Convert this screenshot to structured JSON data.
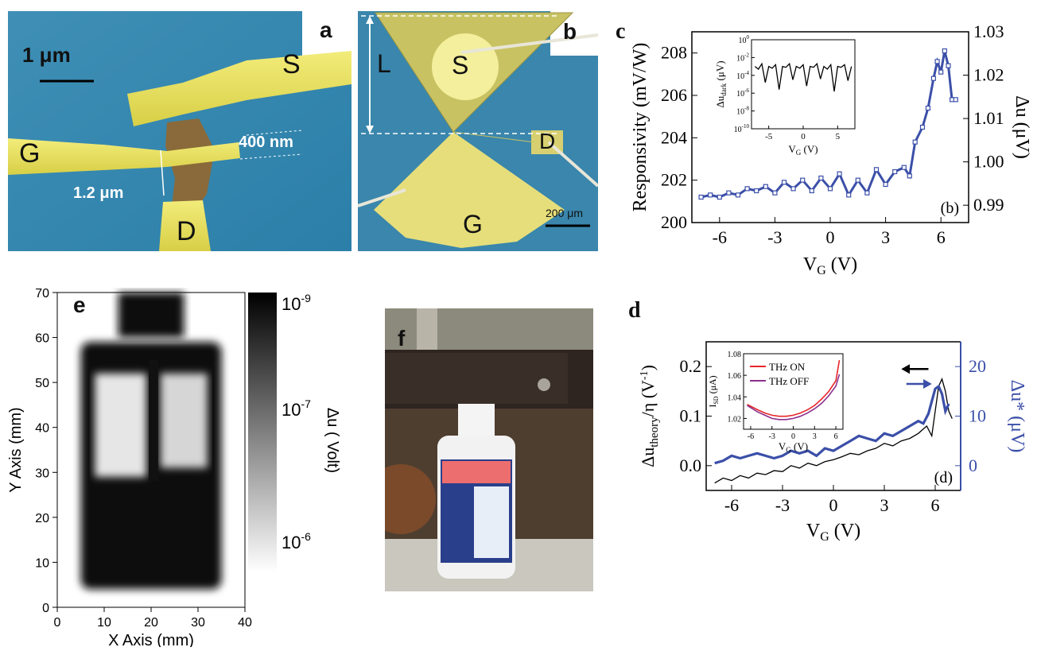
{
  "panels": {
    "a": {
      "letter": "a",
      "scalebar": "1 μm",
      "labels": {
        "s": "S",
        "g": "G",
        "d": "D"
      },
      "dim_gate": "400 nm",
      "dim_channel": "1.2 μm"
    },
    "b": {
      "letter": "b",
      "labels": {
        "s": "S",
        "g": "G",
        "d": "D",
        "l": "L"
      },
      "scalebar": "200 μm"
    },
    "c": {
      "letter": "c",
      "inset_ylabel": "Δu",
      "inset_ylabel_sub": "dark",
      "inset_ylabel_unit": " (μV)",
      "inset_xlabel": "V",
      "inset_xlabel_sub": "G",
      "inset_xlabel_unit": " (V)",
      "corner_tag": "(b)"
    },
    "d": {
      "letter": "d",
      "corner_tag": "(d)",
      "inset_legend": [
        "THz ON",
        "THz OFF"
      ]
    },
    "e": {
      "letter": "e",
      "colorbar_label": "Δu ( Volt)",
      "colorbar_ticks": [
        "10",
        "10",
        "10"
      ],
      "colorbar_exps": [
        "-9",
        "-7",
        "-6"
      ]
    },
    "f": {
      "letter": "f"
    }
  },
  "chart_data": [
    {
      "id": "c",
      "type": "line",
      "xlabel": "V",
      "xlabel_sub": "G",
      "xlabel_unit": " (V)",
      "ylabel": "Responsivity (mV/W)",
      "y2label": "Δu (μV)",
      "xlim": [
        -7.5,
        7.5
      ],
      "ylim": [
        200,
        209
      ],
      "y2lim": [
        0.986,
        1.03
      ],
      "xticks": [
        "-6",
        "-3",
        "0",
        "3",
        "6"
      ],
      "yticks": [
        "200",
        "202",
        "204",
        "206",
        "208"
      ],
      "y2ticks": [
        "0.99",
        "1.00",
        "1.01",
        "1.02",
        "1.03"
      ],
      "series": [
        {
          "color": "#3b4fa8",
          "x": [
            -7,
            -6.5,
            -6,
            -5.5,
            -5,
            -4.5,
            -4,
            -3.5,
            -3,
            -2.5,
            -2,
            -1.5,
            -1,
            -0.5,
            0,
            0.5,
            1,
            1.5,
            2,
            2.5,
            3,
            3.5,
            4,
            4.3,
            4.6,
            5,
            5.3,
            5.6,
            5.8,
            6,
            6.2,
            6.4,
            6.6,
            6.8
          ],
          "values": [
            201.2,
            201.3,
            201.2,
            201.4,
            201.3,
            201.6,
            201.5,
            201.7,
            201.4,
            201.9,
            201.6,
            202.0,
            201.5,
            202.1,
            201.6,
            202.3,
            201.3,
            202.0,
            201.4,
            202.5,
            201.8,
            202.4,
            202.6,
            202.2,
            203.8,
            204.5,
            205.4,
            206.8,
            207.6,
            207.1,
            208.1,
            207.4,
            205.8,
            205.8
          ]
        }
      ],
      "inset": {
        "type": "line",
        "xlim": [
          -7.5,
          7.5
        ],
        "ylog": true,
        "yticks_exp": [
          "0",
          "-2",
          "-4",
          "-6",
          "-8",
          "-10"
        ],
        "xticks": [
          "-5",
          "0",
          "5"
        ],
        "x": [
          -7,
          -6.5,
          -6,
          -5.5,
          -5,
          -4.5,
          -4,
          -3.5,
          -3,
          -2.5,
          -2,
          -1.5,
          -1,
          -0.5,
          0,
          0.5,
          1,
          1.5,
          2,
          2.5,
          3,
          3.5,
          4,
          4.5,
          5,
          5.5,
          6,
          6.5,
          7
        ],
        "values_log": [
          -3.0,
          -3.3,
          -2.7,
          -4.8,
          -3.0,
          -3.2,
          -2.8,
          -5.6,
          -3.0,
          -3.1,
          -2.7,
          -4.5,
          -3.0,
          -3.2,
          -2.8,
          -5.2,
          -3.0,
          -3.1,
          -2.7,
          -4.4,
          -3.0,
          -3.3,
          -2.8,
          -5.8,
          -3.0,
          -3.1,
          -2.8,
          -4.6,
          -3.0
        ]
      }
    },
    {
      "id": "d",
      "type": "line",
      "xlabel": "V",
      "xlabel_sub": "G",
      "xlabel_unit": " (V)",
      "ylabel": "Δu",
      "ylabel_sub": "theory",
      "ylabel_tail": "/η (V",
      "ylabel_sup": "-1",
      "ylabel_close": ")",
      "y2label": "Δu* (μV)",
      "xlim": [
        -7.5,
        7.5
      ],
      "ylim": [
        -0.05,
        0.25
      ],
      "y2lim": [
        -5,
        25
      ],
      "xticks": [
        "-6",
        "-3",
        "0",
        "3",
        "6"
      ],
      "yticks": [
        "0.0",
        "0.1",
        "0.2"
      ],
      "y2ticks": [
        "0",
        "10",
        "20"
      ],
      "series": [
        {
          "color": "#000000",
          "axis": "left",
          "x": [
            -7,
            -6.5,
            -6,
            -5.5,
            -5,
            -4.5,
            -4,
            -3.5,
            -3,
            -2.5,
            -2,
            -1.5,
            -1,
            -0.5,
            0,
            0.5,
            1,
            1.5,
            2,
            2.5,
            3,
            3.5,
            4,
            4.5,
            5,
            5.5,
            5.8,
            6,
            6.2,
            6.4,
            6.6,
            6.8,
            7
          ],
          "values": [
            -0.035,
            -0.025,
            -0.03,
            -0.02,
            -0.025,
            -0.015,
            -0.018,
            -0.01,
            -0.012,
            0.0,
            -0.005,
            0.005,
            0.0,
            0.008,
            0.012,
            0.018,
            0.025,
            0.022,
            0.03,
            0.035,
            0.045,
            0.04,
            0.05,
            0.055,
            0.065,
            0.08,
            0.06,
            0.11,
            0.16,
            0.175,
            0.15,
            0.11,
            0.095
          ]
        },
        {
          "color": "#3b4fa8",
          "axis": "right",
          "x": [
            -7,
            -6.5,
            -6,
            -5.5,
            -5,
            -4.5,
            -4,
            -3.5,
            -3,
            -2.5,
            -2,
            -1.5,
            -1,
            -0.5,
            0,
            0.5,
            1,
            1.5,
            2,
            2.5,
            3,
            3.5,
            4,
            4.5,
            5,
            5.3,
            5.6,
            5.8,
            6,
            6.2,
            6.4,
            6.6,
            6.8
          ],
          "values": [
            0.5,
            1.0,
            2.0,
            1.5,
            2.0,
            2.5,
            2.0,
            1.5,
            2.0,
            3.0,
            2.5,
            3.0,
            2.0,
            3.5,
            3.0,
            4.0,
            5.0,
            6.0,
            5.5,
            5.0,
            6.5,
            6.0,
            7.0,
            8.0,
            9.0,
            8.5,
            10.5,
            13.0,
            15.5,
            16.0,
            14.5,
            11.0,
            12.5
          ]
        }
      ],
      "inset": {
        "type": "line",
        "ylabel": "I",
        "ylabel_sub": "SD",
        "ylabel_unit": " (μA)",
        "xlabel": "V",
        "xlabel_sub": "G",
        "xlabel_unit": " (V)",
        "xlim": [
          -7,
          7
        ],
        "ylim": [
          1.01,
          1.08
        ],
        "yticks": [
          "1.02",
          "1.04",
          "1.06",
          "1.08"
        ],
        "xticks": [
          "-6",
          "-3",
          "0",
          "3",
          "6"
        ],
        "series": [
          {
            "name": "THz ON",
            "color": "#e8262a",
            "x": [
              -6.5,
              -5,
              -4,
              -3,
              -2,
              -1,
              0,
              1,
              2,
              3,
              4,
              5,
              6,
              6.5
            ],
            "values": [
              1.033,
              1.028,
              1.025,
              1.023,
              1.022,
              1.022,
              1.023,
              1.025,
              1.028,
              1.032,
              1.038,
              1.045,
              1.055,
              1.074
            ]
          },
          {
            "name": "THz OFF",
            "color": "#8b2f8e",
            "x": [
              -6.5,
              -5,
              -4,
              -3,
              -2,
              -1,
              0,
              1,
              2,
              3,
              4,
              5,
              6,
              6.5
            ],
            "values": [
              1.032,
              1.026,
              1.023,
              1.02,
              1.019,
              1.019,
              1.02,
              1.022,
              1.025,
              1.029,
              1.034,
              1.041,
              1.05,
              1.061
            ]
          }
        ]
      }
    },
    {
      "id": "e",
      "type": "heatmap",
      "xlabel": "X Axis (mm)",
      "ylabel": "Y Axis (mm)",
      "xlim": [
        0,
        40
      ],
      "ylim": [
        0,
        70
      ],
      "xticks": [
        "0",
        "10",
        "20",
        "30",
        "40"
      ],
      "yticks": [
        "0",
        "10",
        "20",
        "30",
        "40",
        "50",
        "60",
        "70"
      ]
    }
  ]
}
